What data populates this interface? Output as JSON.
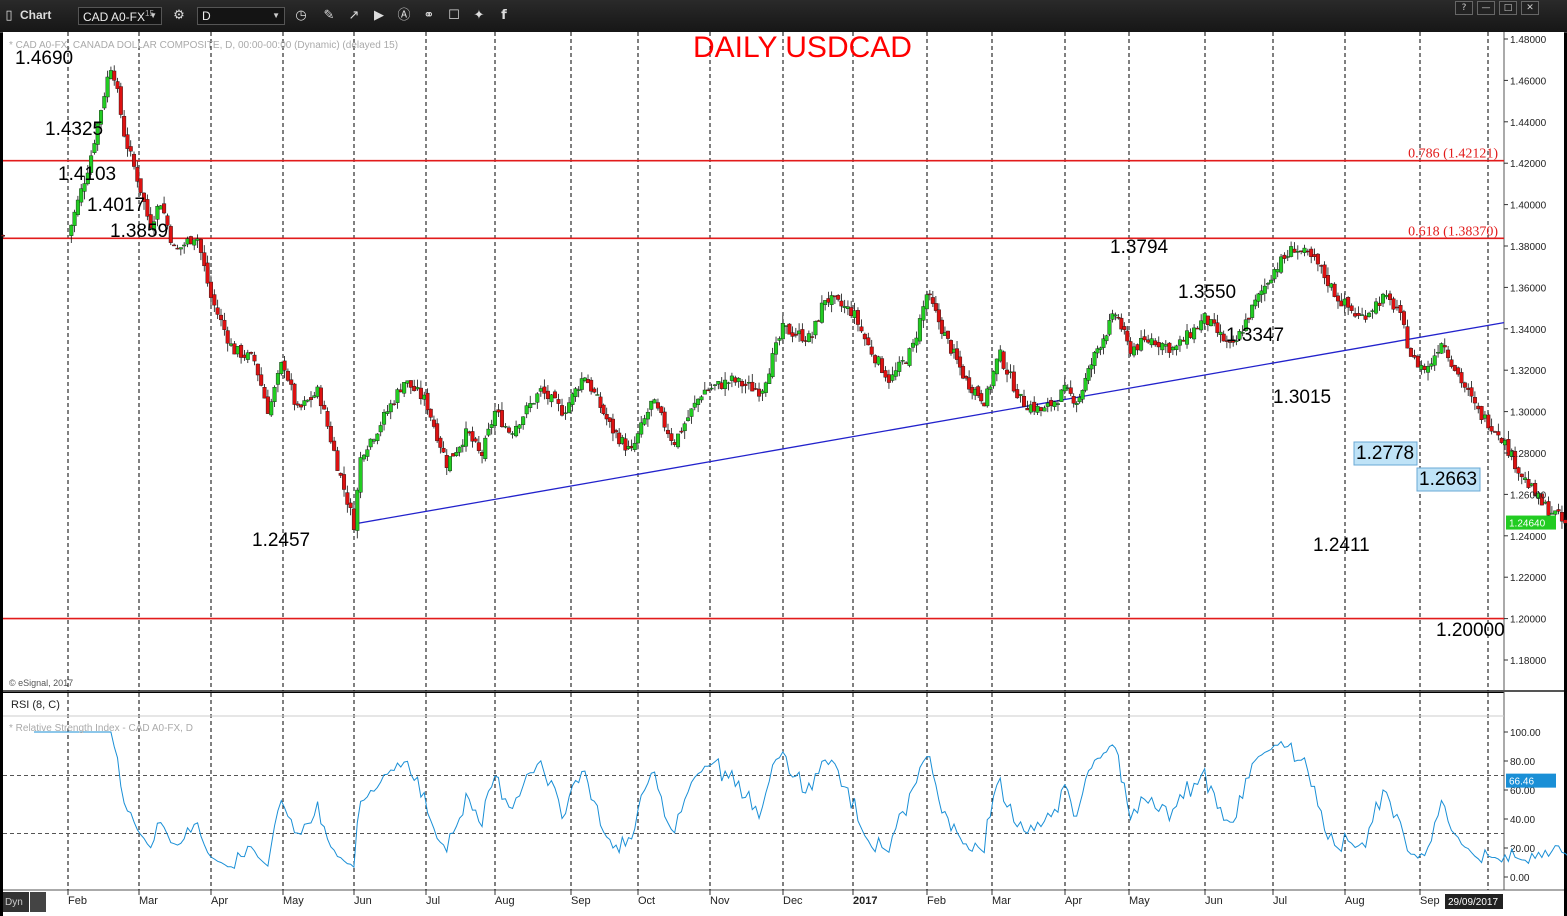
{
  "app": {
    "window_title": "Chart",
    "symbol": "CAD A0-FX",
    "symbol_suffix": "15",
    "interval": "D",
    "toolbar_icons": [
      "clock-icon",
      "pencil-icon",
      "line-tool-icon",
      "play-icon",
      "alert-icon",
      "link-icon",
      "chat-icon",
      "twitter-icon",
      "facebook-icon"
    ],
    "window_buttons": [
      "?",
      "—",
      "□",
      "✕"
    ]
  },
  "chart_data": {
    "type": "candlestick",
    "title": "DAILY USDCAD",
    "subtitle": "* CAD A0-FX, CANADA DOLLAR COMPOSITE, D, 00:00-00:00 (Dynamic) (delayed 15)",
    "credit": "© eSignal, 2017",
    "ylim": [
      1.17,
      1.485
    ],
    "y_ticks": [
      "1.48000",
      "1.46000",
      "1.44000",
      "1.42000",
      "1.40000",
      "1.38000",
      "1.36000",
      "1.34000",
      "1.32000",
      "1.30000",
      "1.28000",
      "1.26000",
      "1.24000",
      "1.22000",
      "1.20000",
      "1.18000"
    ],
    "x_ticks": [
      "Feb",
      "Mar",
      "Apr",
      "May",
      "Jun",
      "Jul",
      "Aug",
      "Sep",
      "Oct",
      "Nov",
      "Dec",
      "2017",
      "Feb",
      "Mar",
      "Apr",
      "May",
      "Jun",
      "Jul",
      "Aug",
      "Sep"
    ],
    "last_date": "29/09/2017",
    "current_price": "1.24640",
    "price_path": [
      {
        "t": 0,
        "p": 1.385
      },
      {
        "t": 0.3,
        "p": 1.42
      },
      {
        "t": 0.55,
        "p": 1.46
      },
      {
        "t": 0.62,
        "p": 1.469
      },
      {
        "t": 0.8,
        "p": 1.4325
      },
      {
        "t": 1.0,
        "p": 1.4103
      },
      {
        "t": 1.15,
        "p": 1.39
      },
      {
        "t": 1.3,
        "p": 1.4017
      },
      {
        "t": 1.5,
        "p": 1.377
      },
      {
        "t": 1.8,
        "p": 1.3859
      },
      {
        "t": 2.0,
        "p": 1.355
      },
      {
        "t": 2.3,
        "p": 1.33
      },
      {
        "t": 2.6,
        "p": 1.325
      },
      {
        "t": 2.8,
        "p": 1.3
      },
      {
        "t": 3.0,
        "p": 1.325
      },
      {
        "t": 3.2,
        "p": 1.3
      },
      {
        "t": 3.5,
        "p": 1.31
      },
      {
        "t": 3.8,
        "p": 1.27
      },
      {
        "t": 4.0,
        "p": 1.2457
      },
      {
        "t": 4.1,
        "p": 1.28
      },
      {
        "t": 4.3,
        "p": 1.29
      },
      {
        "t": 4.7,
        "p": 1.315
      },
      {
        "t": 5.0,
        "p": 1.305
      },
      {
        "t": 5.3,
        "p": 1.275
      },
      {
        "t": 5.6,
        "p": 1.29
      },
      {
        "t": 5.8,
        "p": 1.278
      },
      {
        "t": 6.0,
        "p": 1.3
      },
      {
        "t": 6.2,
        "p": 1.29
      },
      {
        "t": 6.6,
        "p": 1.31
      },
      {
        "t": 6.9,
        "p": 1.3
      },
      {
        "t": 7.2,
        "p": 1.318
      },
      {
        "t": 7.6,
        "p": 1.292
      },
      {
        "t": 7.9,
        "p": 1.28
      },
      {
        "t": 8.2,
        "p": 1.305
      },
      {
        "t": 8.5,
        "p": 1.285
      },
      {
        "t": 8.9,
        "p": 1.31
      },
      {
        "t": 9.3,
        "p": 1.315
      },
      {
        "t": 9.7,
        "p": 1.31
      },
      {
        "t": 10.0,
        "p": 1.34
      },
      {
        "t": 10.4,
        "p": 1.335
      },
      {
        "t": 10.6,
        "p": 1.355
      },
      {
        "t": 11.0,
        "p": 1.348
      },
      {
        "t": 11.2,
        "p": 1.332
      },
      {
        "t": 11.5,
        "p": 1.315
      },
      {
        "t": 11.8,
        "p": 1.33
      },
      {
        "t": 12.0,
        "p": 1.357
      },
      {
        "t": 12.3,
        "p": 1.335
      },
      {
        "t": 12.6,
        "p": 1.315
      },
      {
        "t": 12.9,
        "p": 1.305
      },
      {
        "t": 13.1,
        "p": 1.328
      },
      {
        "t": 13.4,
        "p": 1.305
      },
      {
        "t": 13.7,
        "p": 1.3
      },
      {
        "t": 14.0,
        "p": 1.31
      },
      {
        "t": 14.2,
        "p": 1.305
      },
      {
        "t": 14.5,
        "p": 1.33
      },
      {
        "t": 14.8,
        "p": 1.348
      },
      {
        "t": 15.0,
        "p": 1.33
      },
      {
        "t": 15.3,
        "p": 1.335
      },
      {
        "t": 15.6,
        "p": 1.33
      },
      {
        "t": 16.0,
        "p": 1.345
      },
      {
        "t": 16.4,
        "p": 1.33
      },
      {
        "t": 16.7,
        "p": 1.35
      },
      {
        "t": 17.0,
        "p": 1.368
      },
      {
        "t": 17.3,
        "p": 1.3794
      },
      {
        "t": 17.6,
        "p": 1.372
      },
      {
        "t": 17.9,
        "p": 1.355
      },
      {
        "t": 18.2,
        "p": 1.345
      },
      {
        "t": 18.5,
        "p": 1.355
      },
      {
        "t": 18.7,
        "p": 1.35
      },
      {
        "t": 18.9,
        "p": 1.325
      },
      {
        "t": 19.1,
        "p": 1.32
      },
      {
        "t": 19.3,
        "p": 1.3347
      },
      {
        "t": 19.5,
        "p": 1.32
      },
      {
        "t": 19.8,
        "p": 1.3
      },
      {
        "t": 20.1,
        "p": 1.29
      },
      {
        "t": 20.4,
        "p": 1.27
      },
      {
        "t": 20.7,
        "p": 1.255
      },
      {
        "t": 20.9,
        "p": 1.25
      },
      {
        "t": 21.1,
        "p": 1.2411
      },
      {
        "t": 21.3,
        "p": 1.26
      },
      {
        "t": 21.6,
        "p": 1.275
      },
      {
        "t": 21.8,
        "p": 1.2778
      },
      {
        "t": 22.1,
        "p": 1.262
      },
      {
        "t": 22.3,
        "p": 1.255
      },
      {
        "t": 22.5,
        "p": 1.2663
      },
      {
        "t": 22.7,
        "p": 1.235
      },
      {
        "t": 22.9,
        "p": 1.215
      },
      {
        "t": 23.1,
        "p": 1.208
      },
      {
        "t": 23.4,
        "p": 1.225
      },
      {
        "t": 23.8,
        "p": 1.238
      },
      {
        "t": 24.0,
        "p": 1.245
      },
      {
        "t": 24.1,
        "p": 1.2464
      }
    ],
    "annotations": [
      {
        "text": "1.4690",
        "price": 1.469
      },
      {
        "text": "1.4325",
        "price": 1.4325
      },
      {
        "text": "1.4103",
        "price": 1.4103
      },
      {
        "text": "1.4017",
        "price": 1.4017
      },
      {
        "text": "1.3859",
        "price": 1.3859
      },
      {
        "text": "1.2457",
        "price": 1.2457
      },
      {
        "text": "1.3794",
        "price": 1.3794
      },
      {
        "text": "1.3550",
        "price": 1.355
      },
      {
        "text": "1.3347",
        "price": 1.3347
      },
      {
        "text": "1.3015",
        "price": 1.3015
      },
      {
        "text": "1.2411",
        "price": 1.2411
      },
      {
        "text": "1.2778",
        "price": 1.2778,
        "boxed": true
      },
      {
        "text": "1.2663",
        "price": 1.2663,
        "boxed": true
      },
      {
        "text": "1.20000",
        "price": 1.2
      }
    ],
    "hlines": [
      {
        "price": 1.42121,
        "label": "0.786 (1.42121)"
      },
      {
        "price": 1.3837,
        "label": "0.618 (1.38370)"
      },
      {
        "price": 1.2,
        "label": ""
      }
    ],
    "trendline": {
      "start_price": 1.2457,
      "end_price": 1.343
    },
    "colors": {
      "up": "#22cc22",
      "down": "#dd1111",
      "hline": "#e21b1b",
      "trend": "#2222cc",
      "rsi": "#1a8fd6",
      "title": "#ff0000",
      "price_badge": "#22cc22"
    },
    "rsi": {
      "label": "RSI (8, C)",
      "subtitle": "* Relative Strength Index - CAD A0-FX, D",
      "ylim": [
        -10,
        105
      ],
      "y_ticks": [
        "100.00",
        "80.00",
        "60.00",
        "40.00",
        "20.00",
        "0.00"
      ],
      "levels": [
        70,
        30
      ],
      "current": "66.46"
    }
  }
}
